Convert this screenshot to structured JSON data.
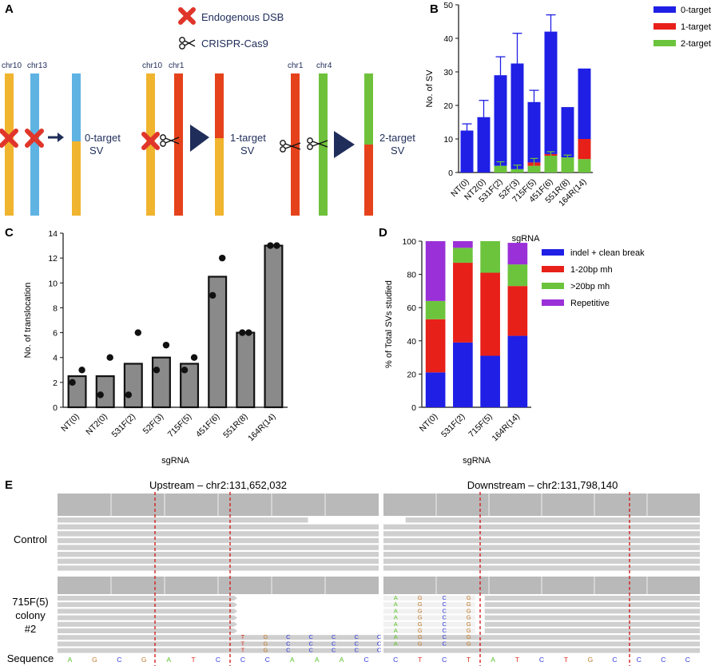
{
  "panels": {
    "A": {
      "letter": "A",
      "legend": {
        "dsb": "Endogenous DSB",
        "cas9": "CRISPR-Cas9"
      },
      "groups": [
        {
          "chr_left": "chr10",
          "chr_right": "chr13",
          "label_line1": "0-target",
          "label_line2": "SV"
        },
        {
          "chr_left": "chr10",
          "chr_right": "chr1",
          "label_line1": "1-target",
          "label_line2": "SV"
        },
        {
          "chr_left": "chr1",
          "chr_right": "chr4",
          "label_line1": "2-target",
          "label_line2": "SV"
        }
      ],
      "colors": {
        "chr10": "#f0b42e",
        "chr13": "#5fb3e3",
        "chr1": "#e5421c",
        "chr4": "#6fc13c",
        "arrow": "#1f2d5a",
        "cross": "#e0352a"
      }
    },
    "B": {
      "letter": "B"
    },
    "C": {
      "letter": "C"
    },
    "D": {
      "letter": "D"
    },
    "E": {
      "letter": "E",
      "upstream_title": "Upstream – chr2:131,652,032",
      "downstream_title": "Downstream – chr2:131,798,140",
      "row_control": "Control",
      "row_sample_line1": "715F(5)",
      "row_sample_line2": "colony",
      "row_sample_line3": "#2",
      "row_sequence": "Sequence",
      "sequence_up": [
        "A",
        "G",
        "C",
        "G",
        "A",
        "T",
        "C",
        "C",
        "C",
        "A",
        "A",
        "A",
        "C"
      ],
      "sequence_down": [
        "C",
        "T",
        "C",
        "T",
        "A",
        "T",
        "C",
        "T",
        "G",
        "C",
        "C",
        "C",
        "C"
      ],
      "base_colors": {
        "A": "#5cc22b",
        "C": "#2f3bdb",
        "G": "#c27a2a",
        "T": "#d8301f"
      },
      "insert_up": [
        "T",
        "G",
        "C",
        "C",
        "C",
        "C",
        "C"
      ],
      "insert_down": [
        "A",
        "G",
        "C",
        "G"
      ]
    }
  },
  "chart_data": [
    {
      "panel": "B",
      "type": "bar",
      "stacked": true,
      "categories": [
        "NT(0)",
        "NT2(0)",
        "531F(2)",
        "52F(3)",
        "715F(5)",
        "451F(6)",
        "551R(8)",
        "164R(14)"
      ],
      "series": [
        {
          "name": "0-target",
          "color": "#1f1fe6",
          "values": [
            12.5,
            16.5,
            27,
            31.5,
            18,
            36.5,
            15,
            21
          ]
        },
        {
          "name": "1-target",
          "color": "#e8201a",
          "values": [
            0,
            0,
            0,
            0,
            1,
            0.5,
            0,
            6
          ]
        },
        {
          "name": "2-target",
          "color": "#6cc43c",
          "values": [
            0,
            0,
            2,
            1,
            2,
            5,
            4.5,
            4
          ]
        }
      ],
      "error_top": [
        14.5,
        21.5,
        34.5,
        41.5,
        24.5,
        47,
        null,
        null
      ],
      "error_green": [
        null,
        null,
        3.2,
        2.2,
        4.2,
        6.2,
        5.2,
        null
      ],
      "xlabel": "sgRNA",
      "ylabel": "No. of SV",
      "ylim": [
        0,
        50
      ],
      "yticks": [
        0,
        10,
        20,
        30,
        40,
        50
      ]
    },
    {
      "panel": "C",
      "type": "bar",
      "categories": [
        "NT(0)",
        "NT2(0)",
        "531F(2)",
        "52F(3)",
        "715F(5)",
        "451F(6)",
        "551R(8)",
        "164R(14)"
      ],
      "values": [
        2.5,
        2.5,
        3.5,
        4,
        3.5,
        10.5,
        6,
        13
      ],
      "points": [
        [
          2,
          3
        ],
        [
          1,
          4
        ],
        [
          1,
          6
        ],
        [
          3,
          5
        ],
        [
          3,
          4
        ],
        [
          9,
          12
        ],
        [
          6,
          6
        ],
        [
          13,
          13
        ]
      ],
      "color": "#8a8a8a",
      "xlabel": "sgRNA",
      "ylabel": "No. of translocation",
      "ylim": [
        0,
        14
      ],
      "yticks": [
        0,
        2,
        4,
        6,
        8,
        10,
        12,
        14
      ]
    },
    {
      "panel": "D",
      "type": "bar",
      "stacked": true,
      "categories": [
        "NT(0)",
        "531F(2)",
        "715F(5)",
        "164R(14)"
      ],
      "series": [
        {
          "name": "indel + clean break",
          "color": "#1f1fe6",
          "values": [
            21,
            39,
            31,
            43
          ]
        },
        {
          "name": "1-20bp mh",
          "color": "#e8201a",
          "values": [
            32,
            48,
            50,
            30
          ]
        },
        {
          "name": ">20bp mh",
          "color": "#6cc43c",
          "values": [
            11,
            9,
            19,
            13
          ]
        },
        {
          "name": "Repetitive",
          "color": "#9a30d8",
          "values": [
            36,
            4,
            0,
            13
          ]
        }
      ],
      "xlabel": "sgRNA",
      "ylabel": "% of Total SVs studied",
      "ylim": [
        0,
        100
      ],
      "yticks": [
        0,
        20,
        40,
        60,
        80,
        100
      ]
    }
  ]
}
